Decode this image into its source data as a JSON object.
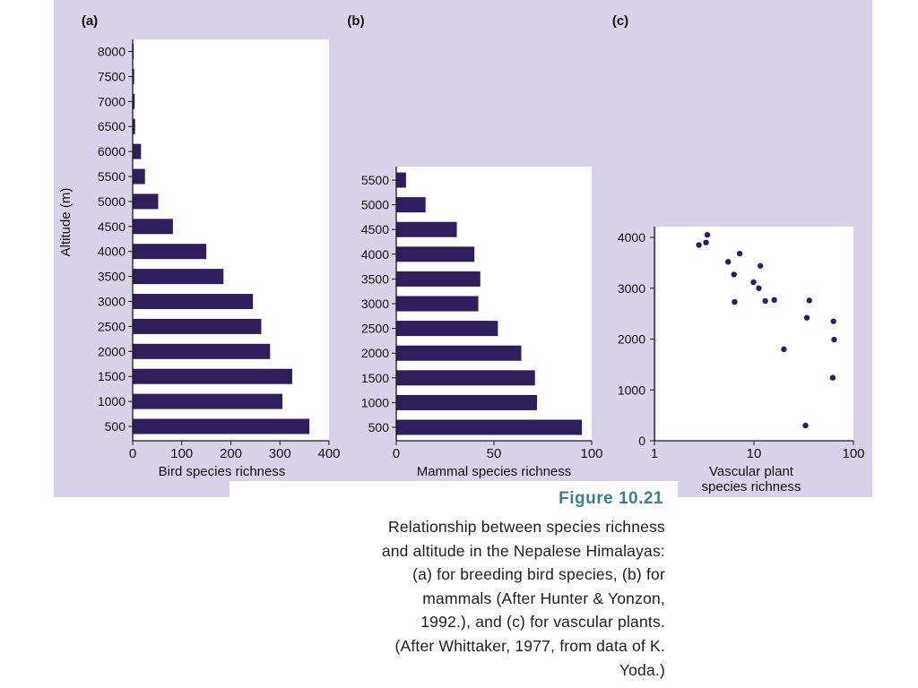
{
  "colors": {
    "bar": "#2e1f5c",
    "axis": "#1a1a1a",
    "point": "#2e1f5c",
    "caption_title": "#3f7e86",
    "scan_background": "#d9d3ea"
  },
  "chart_data": [
    {
      "panel_label": "(a)",
      "type": "bar",
      "orientation": "horizontal",
      "ylabel": "Altitude (m)",
      "xlabel": "Bird species richness",
      "categories": [
        "500",
        "1000",
        "1500",
        "2000",
        "2500",
        "3000",
        "3500",
        "4000",
        "4500",
        "5000",
        "5500",
        "6000",
        "6500",
        "7000",
        "7500",
        "8000"
      ],
      "values": [
        360,
        305,
        325,
        280,
        262,
        245,
        185,
        150,
        82,
        52,
        25,
        17,
        5,
        4,
        3,
        2
      ],
      "x_ticks": [
        "0",
        "100",
        "200",
        "300",
        "400"
      ],
      "xlim": [
        0,
        400
      ],
      "grid": false
    },
    {
      "panel_label": "(b)",
      "type": "bar",
      "orientation": "horizontal",
      "xlabel": "Mammal species richness",
      "categories": [
        "500",
        "1000",
        "1500",
        "2000",
        "2500",
        "3000",
        "3500",
        "4000",
        "4500",
        "5000",
        "5500"
      ],
      "values": [
        95,
        72,
        71,
        64,
        52,
        42,
        43,
        40,
        31,
        15,
        5
      ],
      "x_ticks": [
        "0",
        "50",
        "100"
      ],
      "xlim": [
        0,
        100
      ],
      "grid": false
    },
    {
      "panel_label": "(c)",
      "type": "scatter",
      "xlabel": "Vascular plant species richness",
      "x_scale": "log",
      "xlim": [
        1,
        100
      ],
      "ylim": [
        0,
        4200
      ],
      "x_ticks": [
        "1",
        "10",
        "100"
      ],
      "y_ticks": [
        "0",
        "1000",
        "2000",
        "3000",
        "4000"
      ],
      "points": [
        {
          "x": 2.8,
          "y": 3850
        },
        {
          "x": 3.3,
          "y": 3900
        },
        {
          "x": 3.4,
          "y": 4050
        },
        {
          "x": 5.5,
          "y": 3520
        },
        {
          "x": 6.3,
          "y": 3270
        },
        {
          "x": 7.2,
          "y": 3680
        },
        {
          "x": 6.4,
          "y": 2730
        },
        {
          "x": 9.9,
          "y": 3120
        },
        {
          "x": 11.2,
          "y": 3000
        },
        {
          "x": 11.6,
          "y": 3440
        },
        {
          "x": 13.0,
          "y": 2750
        },
        {
          "x": 16.0,
          "y": 2770
        },
        {
          "x": 20.0,
          "y": 1800
        },
        {
          "x": 34.0,
          "y": 2420
        },
        {
          "x": 36.0,
          "y": 2760
        },
        {
          "x": 33.0,
          "y": 300
        },
        {
          "x": 63.0,
          "y": 2350
        },
        {
          "x": 64.0,
          "y": 1990
        },
        {
          "x": 62.0,
          "y": 1240
        }
      ],
      "grid": false
    }
  ],
  "caption": {
    "title": "Figure 10.21",
    "lines": [
      "Relationship between species richness",
      "and altitude in the Nepalese Himalayas:",
      "(a) for breeding bird species, (b) for",
      "mammals (After Hunter & Yonzon,",
      "1992.), and (c) for vascular plants.",
      "(After Whittaker, 1977, from data of K.",
      "Yoda.)"
    ]
  }
}
